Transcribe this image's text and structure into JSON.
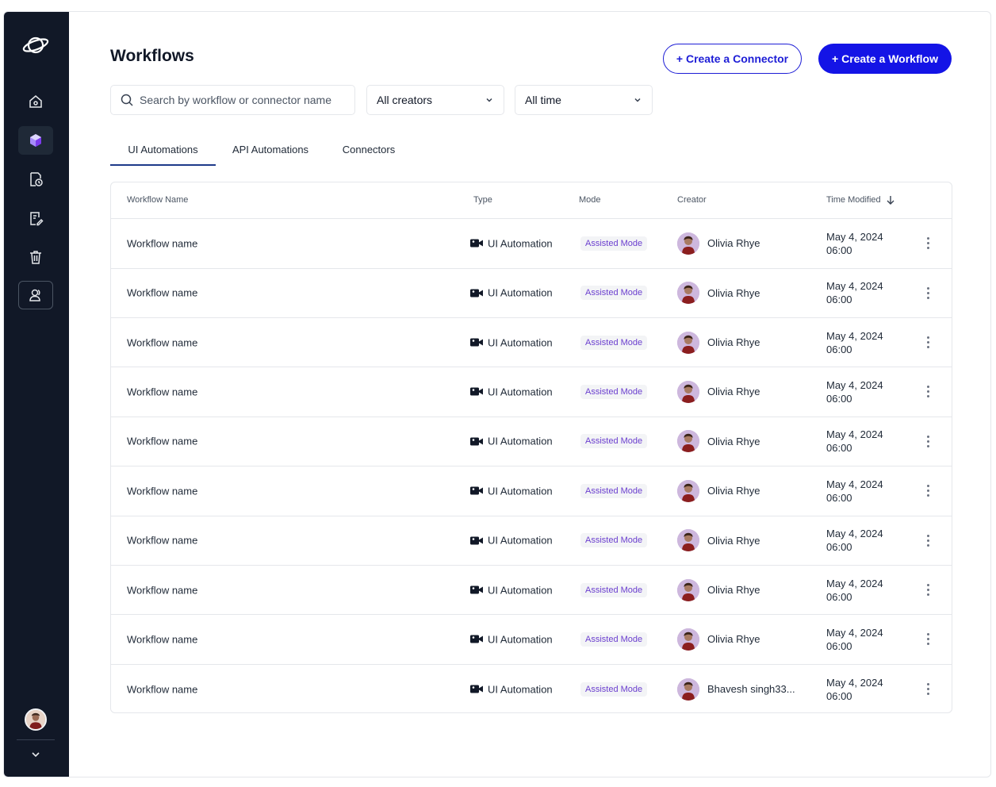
{
  "sidebar": {
    "nav": [
      {
        "name": "home-icon"
      },
      {
        "name": "cube-icon"
      },
      {
        "name": "history-doc-icon"
      },
      {
        "name": "edit-doc-icon"
      },
      {
        "name": "trash-icon"
      },
      {
        "name": "users-icon"
      }
    ]
  },
  "header": {
    "title": "Workflows",
    "create_connector": "+ Create a Connector",
    "create_workflow": "+ Create a Workflow"
  },
  "filters": {
    "search_placeholder": "Search by workflow or connector name",
    "creators": "All creators",
    "time": "All time"
  },
  "tabs": [
    {
      "label": "UI Automations",
      "active": true
    },
    {
      "label": "API Automations",
      "active": false
    },
    {
      "label": "Connectors",
      "active": false
    }
  ],
  "table": {
    "columns": {
      "name": "Workflow Name",
      "type": "Type",
      "mode": "Mode",
      "creator": "Creator",
      "time": "Time Modified"
    },
    "rows": [
      {
        "name": "Workflow name",
        "type": "UI Automation",
        "mode": "Assisted Mode",
        "creator": "Olivia Rhye",
        "date": "May 4, 2024",
        "time": "06:00"
      },
      {
        "name": "Workflow name",
        "type": "UI Automation",
        "mode": "Assisted Mode",
        "creator": "Olivia Rhye",
        "date": "May 4, 2024",
        "time": "06:00"
      },
      {
        "name": "Workflow name",
        "type": "UI Automation",
        "mode": "Assisted Mode",
        "creator": "Olivia Rhye",
        "date": "May 4, 2024",
        "time": "06:00"
      },
      {
        "name": "Workflow name",
        "type": "UI Automation",
        "mode": "Assisted Mode",
        "creator": "Olivia Rhye",
        "date": "May 4, 2024",
        "time": "06:00"
      },
      {
        "name": "Workflow name",
        "type": "UI Automation",
        "mode": "Assisted Mode",
        "creator": "Olivia Rhye",
        "date": "May 4, 2024",
        "time": "06:00"
      },
      {
        "name": "Workflow name",
        "type": "UI Automation",
        "mode": "Assisted Mode",
        "creator": "Olivia Rhye",
        "date": "May 4, 2024",
        "time": "06:00"
      },
      {
        "name": "Workflow name",
        "type": "UI Automation",
        "mode": "Assisted Mode",
        "creator": "Olivia Rhye",
        "date": "May 4, 2024",
        "time": "06:00"
      },
      {
        "name": "Workflow name",
        "type": "UI Automation",
        "mode": "Assisted Mode",
        "creator": "Olivia Rhye",
        "date": "May 4, 2024",
        "time": "06:00"
      },
      {
        "name": "Workflow name",
        "type": "UI Automation",
        "mode": "Assisted Mode",
        "creator": "Olivia Rhye",
        "date": "May 4, 2024",
        "time": "06:00"
      },
      {
        "name": "Workflow name",
        "type": "UI Automation",
        "mode": "Assisted Mode",
        "creator": "Bhavesh singh33...",
        "date": "May 4, 2024",
        "time": "06:00"
      }
    ]
  },
  "colors": {
    "sidebar_bg": "#111827",
    "primary": "#1414e6",
    "badge_text": "#6b3fcf"
  }
}
